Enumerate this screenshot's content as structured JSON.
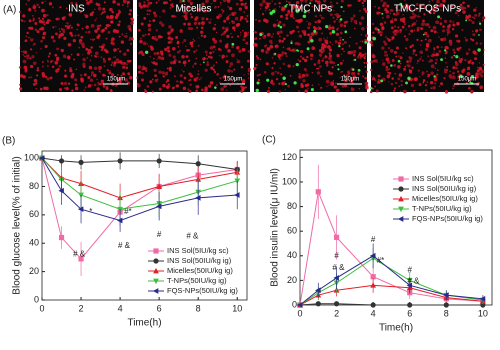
{
  "panel_a": {
    "label": "(A)",
    "images": [
      {
        "title": "INS",
        "scale_label": "150μm"
      },
      {
        "title": "Micelles",
        "scale_label": "150μm"
      },
      {
        "title": "TMC NPs",
        "scale_label": "150μm"
      },
      {
        "title": "TMC-FQS NPs",
        "scale_label": "150μm"
      }
    ]
  },
  "chart_data": [
    {
      "type": "line",
      "panel_label": "(B)",
      "x_label": "Time(h)",
      "y_label": "Blood glucose level(% of initial)",
      "x": [
        0,
        1,
        2,
        4,
        6,
        8,
        10
      ],
      "xlim": [
        0,
        10.5
      ],
      "xticks": [
        0,
        2,
        4,
        6,
        8,
        10
      ],
      "ylim": [
        0,
        105
      ],
      "yticks": [
        0,
        20,
        40,
        60,
        80,
        100
      ],
      "legend": "lower-right",
      "series": [
        {
          "name": "INS Sol(5IU/kg sc)",
          "color": "#f06aa6",
          "marker": "square",
          "values": [
            100,
            44,
            29,
            62,
            80,
            88,
            92
          ],
          "errors": [
            0,
            8,
            12,
            10,
            8,
            6,
            5
          ]
        },
        {
          "name": "INS Sol(50IU/kg ig)",
          "color": "#333333",
          "marker": "circle",
          "values": [
            100,
            98,
            97,
            98,
            98,
            96,
            92
          ],
          "errors": [
            0,
            4,
            5,
            6,
            5,
            6,
            6
          ]
        },
        {
          "name": "Micelles(50IU/kg ig)",
          "color": "#e0202a",
          "marker": "triangle-up",
          "values": [
            100,
            86,
            82,
            72,
            80,
            85,
            90
          ],
          "errors": [
            0,
            8,
            9,
            10,
            9,
            8,
            7
          ]
        },
        {
          "name": "T-NPs(50IU/kg ig)",
          "color": "#3cbf3c",
          "marker": "triangle-down",
          "values": [
            100,
            85,
            74,
            64,
            68,
            76,
            84
          ],
          "errors": [
            0,
            9,
            10,
            12,
            10,
            9,
            8
          ]
        },
        {
          "name": "FQS-NPs(50IU/kg ig)",
          "color": "#2a2a8c",
          "marker": "triangle-left",
          "values": [
            100,
            77,
            64,
            56,
            66,
            72,
            74
          ],
          "errors": [
            0,
            10,
            10,
            8,
            10,
            12,
            10
          ]
        }
      ],
      "annotations": [
        "# &",
        "*",
        "#*",
        "# &",
        "#",
        "# &"
      ]
    },
    {
      "type": "line",
      "panel_label": "(C)",
      "x_label": "Time(h)",
      "y_label": "Blood insulin level(μ IU/ml)",
      "x": [
        0,
        1,
        2,
        4,
        6,
        8,
        10
      ],
      "xlim": [
        0,
        10.5
      ],
      "xticks": [
        0,
        2,
        4,
        6,
        8,
        10
      ],
      "ylim": [
        0,
        126
      ],
      "yticks": [
        0,
        20,
        40,
        60,
        80,
        100,
        120
      ],
      "legend": "upper-right",
      "series": [
        {
          "name": "INS Sol(5IU/kg sc)",
          "color": "#f06aa6",
          "marker": "square",
          "values": [
            0,
            92,
            55,
            23,
            10,
            5,
            3
          ],
          "errors": [
            0,
            22,
            18,
            8,
            5,
            3,
            2
          ]
        },
        {
          "name": "INS Sol(50IU/kg ig)",
          "color": "#333333",
          "marker": "circle",
          "values": [
            0,
            1,
            1,
            0,
            0,
            0,
            0
          ],
          "errors": [
            0,
            1,
            1,
            1,
            1,
            1,
            1
          ]
        },
        {
          "name": "Micelles(50IU/kg ig)",
          "color": "#e0202a",
          "marker": "triangle-up",
          "values": [
            0,
            8,
            12,
            16,
            14,
            6,
            3
          ],
          "errors": [
            0,
            4,
            5,
            6,
            5,
            3,
            2
          ]
        },
        {
          "name": "T-NPs(50IU/kg ig)",
          "color": "#3cbf3c",
          "marker": "triangle-down",
          "values": [
            0,
            10,
            18,
            38,
            20,
            8,
            4
          ],
          "errors": [
            0,
            5,
            8,
            8,
            7,
            4,
            3
          ]
        },
        {
          "name": "FQS-NPs(50IU/kg ig)",
          "color": "#2a2a8c",
          "marker": "triangle-left",
          "values": [
            0,
            12,
            22,
            40,
            16,
            8,
            5
          ],
          "errors": [
            0,
            6,
            9,
            10,
            6,
            4,
            3
          ]
        }
      ],
      "annotations": [
        "#",
        "# &",
        "#",
        "#*",
        "#",
        "# &"
      ]
    }
  ]
}
